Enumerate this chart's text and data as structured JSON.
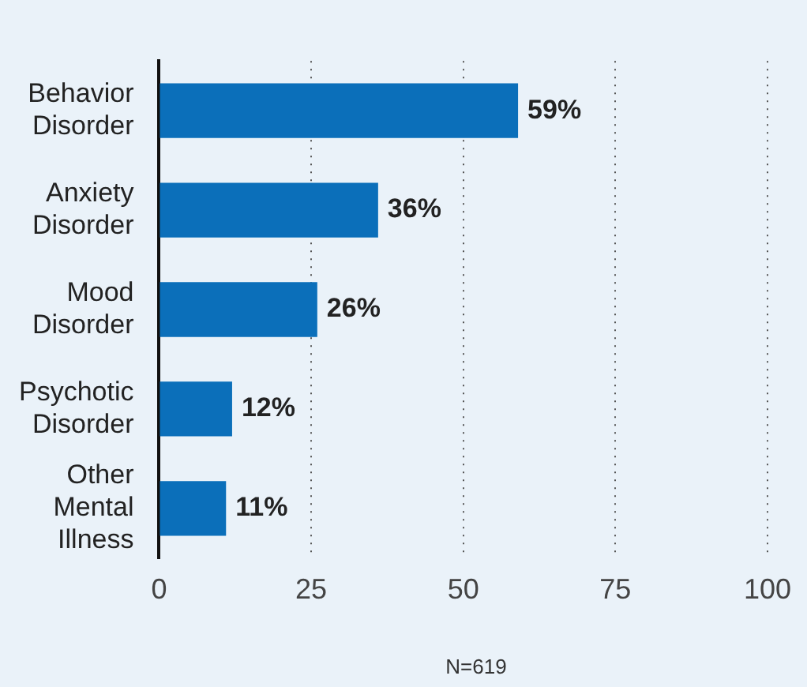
{
  "chart_data": {
    "type": "bar",
    "orientation": "horizontal",
    "categories": [
      "Behavior Disorder",
      "Anxiety Disorder",
      "Mood Disorder",
      "Psychotic Disorder",
      "Other Mental Illness"
    ],
    "values": [
      59,
      36,
      26,
      12,
      11
    ],
    "value_labels": [
      "59%",
      "36%",
      "26%",
      "12%",
      "11%"
    ],
    "color": "#0b6fba",
    "xlim": [
      0,
      100
    ],
    "xticks": [
      0,
      25,
      50,
      75,
      100
    ],
    "grid": "x",
    "legend": false,
    "annotations": [
      "N=619"
    ]
  }
}
